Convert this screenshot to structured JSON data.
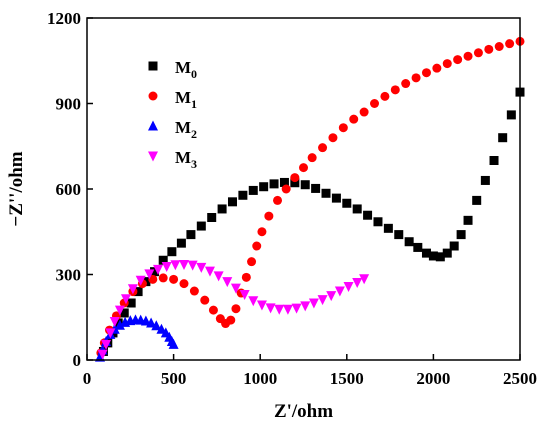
{
  "chart_data": {
    "type": "scatter",
    "xlabel": "Z'/ohm",
    "ylabel": "−Z''/ohm",
    "xlim": [
      0,
      2500
    ],
    "ylim": [
      0,
      1200
    ],
    "x_ticks": [
      0,
      500,
      1000,
      1500,
      2000,
      2500
    ],
    "y_ticks": [
      0,
      300,
      600,
      900,
      1200
    ],
    "grid": false,
    "legend_placement": "top-left",
    "series": [
      {
        "name": "M0",
        "name_base": "M",
        "name_sub": "0",
        "marker": "square",
        "color": "#000000",
        "points": [
          [
            95,
            30
          ],
          [
            120,
            60
          ],
          [
            150,
            95
          ],
          [
            180,
            130
          ],
          [
            215,
            165
          ],
          [
            255,
            200
          ],
          [
            295,
            240
          ],
          [
            340,
            275
          ],
          [
            390,
            310
          ],
          [
            440,
            350
          ],
          [
            490,
            380
          ],
          [
            545,
            410
          ],
          [
            600,
            440
          ],
          [
            660,
            470
          ],
          [
            720,
            500
          ],
          [
            780,
            530
          ],
          [
            840,
            555
          ],
          [
            900,
            578
          ],
          [
            960,
            595
          ],
          [
            1020,
            608
          ],
          [
            1080,
            618
          ],
          [
            1140,
            623
          ],
          [
            1200,
            622
          ],
          [
            1260,
            615
          ],
          [
            1320,
            602
          ],
          [
            1380,
            585
          ],
          [
            1440,
            568
          ],
          [
            1500,
            550
          ],
          [
            1560,
            530
          ],
          [
            1620,
            508
          ],
          [
            1680,
            485
          ],
          [
            1740,
            462
          ],
          [
            1800,
            440
          ],
          [
            1860,
            415
          ],
          [
            1910,
            395
          ],
          [
            1960,
            375
          ],
          [
            2000,
            365
          ],
          [
            2040,
            362
          ],
          [
            2080,
            375
          ],
          [
            2120,
            400
          ],
          [
            2160,
            440
          ],
          [
            2200,
            490
          ],
          [
            2250,
            560
          ],
          [
            2300,
            630
          ],
          [
            2350,
            700
          ],
          [
            2400,
            780
          ],
          [
            2450,
            860
          ],
          [
            2500,
            940
          ]
        ]
      },
      {
        "name": "M1",
        "name_base": "M",
        "name_sub": "1",
        "marker": "circle",
        "color": "#ff0000",
        "points": [
          [
            80,
            25
          ],
          [
            100,
            60
          ],
          [
            130,
            105
          ],
          [
            170,
            155
          ],
          [
            215,
            200
          ],
          [
            265,
            240
          ],
          [
            320,
            268
          ],
          [
            380,
            283
          ],
          [
            440,
            288
          ],
          [
            500,
            283
          ],
          [
            560,
            268
          ],
          [
            620,
            242
          ],
          [
            680,
            210
          ],
          [
            730,
            175
          ],
          [
            770,
            145
          ],
          [
            800,
            128
          ],
          [
            830,
            140
          ],
          [
            860,
            180
          ],
          [
            890,
            235
          ],
          [
            920,
            290
          ],
          [
            950,
            345
          ],
          [
            980,
            400
          ],
          [
            1010,
            450
          ],
          [
            1050,
            505
          ],
          [
            1100,
            560
          ],
          [
            1150,
            600
          ],
          [
            1200,
            640
          ],
          [
            1250,
            675
          ],
          [
            1300,
            710
          ],
          [
            1360,
            745
          ],
          [
            1420,
            780
          ],
          [
            1480,
            815
          ],
          [
            1540,
            845
          ],
          [
            1600,
            870
          ],
          [
            1660,
            900
          ],
          [
            1720,
            925
          ],
          [
            1780,
            948
          ],
          [
            1840,
            970
          ],
          [
            1900,
            990
          ],
          [
            1960,
            1008
          ],
          [
            2020,
            1024
          ],
          [
            2080,
            1040
          ],
          [
            2140,
            1054
          ],
          [
            2200,
            1066
          ],
          [
            2260,
            1078
          ],
          [
            2320,
            1090
          ],
          [
            2380,
            1100
          ],
          [
            2440,
            1110
          ],
          [
            2500,
            1118
          ]
        ]
      },
      {
        "name": "M2",
        "name_base": "M",
        "name_sub": "2",
        "marker": "triangle",
        "color": "#0000ff",
        "points": [
          [
            75,
            10
          ],
          [
            90,
            35
          ],
          [
            110,
            65
          ],
          [
            135,
            90
          ],
          [
            160,
            108
          ],
          [
            190,
            122
          ],
          [
            220,
            132
          ],
          [
            250,
            138
          ],
          [
            280,
            141
          ],
          [
            310,
            140
          ],
          [
            340,
            137
          ],
          [
            370,
            130
          ],
          [
            400,
            120
          ],
          [
            430,
            108
          ],
          [
            455,
            95
          ],
          [
            475,
            80
          ],
          [
            490,
            65
          ],
          [
            500,
            55
          ]
        ]
      },
      {
        "name": "M3",
        "name_base": "M",
        "name_sub": "3",
        "marker": "triangle-down",
        "color": "#ff00ff",
        "points": [
          [
            90,
            20
          ],
          [
            110,
            55
          ],
          [
            135,
            95
          ],
          [
            160,
            135
          ],
          [
            190,
            175
          ],
          [
            225,
            215
          ],
          [
            265,
            250
          ],
          [
            310,
            280
          ],
          [
            360,
            302
          ],
          [
            410,
            318
          ],
          [
            460,
            328
          ],
          [
            510,
            334
          ],
          [
            560,
            335
          ],
          [
            610,
            333
          ],
          [
            660,
            325
          ],
          [
            710,
            312
          ],
          [
            760,
            295
          ],
          [
            810,
            275
          ],
          [
            860,
            252
          ],
          [
            910,
            230
          ],
          [
            960,
            208
          ],
          [
            1010,
            193
          ],
          [
            1060,
            183
          ],
          [
            1110,
            178
          ],
          [
            1160,
            178
          ],
          [
            1210,
            182
          ],
          [
            1260,
            190
          ],
          [
            1310,
            200
          ],
          [
            1360,
            212
          ],
          [
            1410,
            226
          ],
          [
            1460,
            242
          ],
          [
            1510,
            258
          ],
          [
            1560,
            272
          ],
          [
            1600,
            285
          ]
        ]
      }
    ]
  }
}
